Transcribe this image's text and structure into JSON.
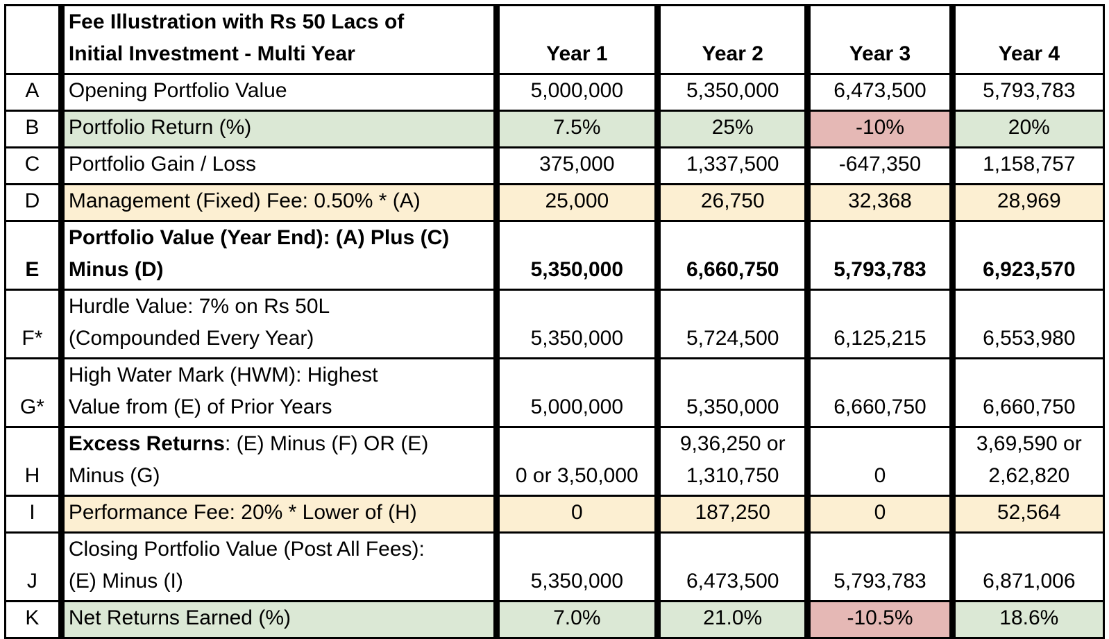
{
  "title_line1": "Fee Illustration with Rs 50 Lacs of",
  "title_line2": "Initial Investment - Multi Year",
  "years": [
    "Year 1",
    "Year 2",
    "Year 3",
    "Year 4"
  ],
  "colors": {
    "green": "#dbe8d5",
    "red": "#e5b8b5",
    "yellow": "#fcefd2"
  },
  "rows": [
    {
      "id": "A",
      "label_lines": [
        "Opening Portfolio Value"
      ],
      "values": [
        [
          "5,000,000"
        ],
        [
          "5,350,000"
        ],
        [
          "6,473,500"
        ],
        [
          "5,793,783"
        ]
      ],
      "bg": [
        "",
        "",
        "",
        "",
        ""
      ]
    },
    {
      "id": "B",
      "label_lines": [
        "Portfolio Return (%)"
      ],
      "values": [
        [
          "7.5%"
        ],
        [
          "25%"
        ],
        [
          "-10%"
        ],
        [
          "20%"
        ]
      ],
      "bg": [
        "green",
        "green",
        "green",
        "red",
        "green"
      ]
    },
    {
      "id": "C",
      "label_lines": [
        "Portfolio Gain / Loss"
      ],
      "values": [
        [
          "375,000"
        ],
        [
          "1,337,500"
        ],
        [
          "-647,350"
        ],
        [
          "1,158,757"
        ]
      ],
      "bg": [
        "",
        "",
        "",
        "",
        ""
      ]
    },
    {
      "id": "D",
      "label_lines": [
        "Management (Fixed) Fee: 0.50% * (A)"
      ],
      "values": [
        [
          "25,000"
        ],
        [
          "26,750"
        ],
        [
          "32,368"
        ],
        [
          "28,969"
        ]
      ],
      "bg": [
        "yellow",
        "yellow",
        "yellow",
        "yellow",
        "yellow"
      ]
    },
    {
      "id": "E",
      "label_lines": [
        "Portfolio Value (Year End): (A) Plus (C)",
        "Minus (D)"
      ],
      "values": [
        [
          "5,350,000"
        ],
        [
          "6,660,750"
        ],
        [
          "5,793,783"
        ],
        [
          "6,923,570"
        ]
      ],
      "bg": [
        "",
        "",
        "",
        "",
        ""
      ],
      "bold": true
    },
    {
      "id": "F*",
      "label_lines": [
        "Hurdle Value: 7% on Rs 50L",
        "(Compounded Every Year)"
      ],
      "values": [
        [
          "5,350,000"
        ],
        [
          "5,724,500"
        ],
        [
          "6,125,215"
        ],
        [
          "6,553,980"
        ]
      ],
      "bg": [
        "",
        "",
        "",
        "",
        ""
      ]
    },
    {
      "id": "G*",
      "label_lines": [
        "High Water Mark (HWM): Highest",
        "Value from (E) of Prior Years"
      ],
      "values": [
        [
          "5,000,000"
        ],
        [
          "5,350,000"
        ],
        [
          "6,660,750"
        ],
        [
          "6,660,750"
        ]
      ],
      "bg": [
        "",
        "",
        "",
        "",
        ""
      ]
    },
    {
      "id": "H",
      "label_bold_prefix": "Excess Returns",
      "label_lines": [
        ": (E) Minus (F)  OR  (E)",
        "Minus (G)"
      ],
      "values": [
        [
          "0 or 3,50,000"
        ],
        [
          "9,36,250 or",
          "1,310,750"
        ],
        [
          "0"
        ],
        [
          "3,69,590 or",
          "2,62,820"
        ]
      ],
      "bg": [
        "",
        "",
        "",
        "",
        ""
      ]
    },
    {
      "id": "I",
      "label_lines": [
        "Performance Fee: 20% * Lower of (H)"
      ],
      "values": [
        [
          "0"
        ],
        [
          "187,250"
        ],
        [
          "0"
        ],
        [
          "52,564"
        ]
      ],
      "bg": [
        "yellow",
        "yellow",
        "yellow",
        "yellow",
        "yellow"
      ]
    },
    {
      "id": "J",
      "label_lines": [
        "Closing Portfolio Value (Post All Fees):",
        "(E) Minus (I)"
      ],
      "values": [
        [
          "5,350,000"
        ],
        [
          "6,473,500"
        ],
        [
          "5,793,783"
        ],
        [
          "6,871,006"
        ]
      ],
      "bg": [
        "",
        "",
        "",
        "",
        ""
      ]
    },
    {
      "id": "K",
      "label_lines": [
        "Net Returns Earned (%)"
      ],
      "values": [
        [
          "7.0%"
        ],
        [
          "21.0%"
        ],
        [
          "-10.5%"
        ],
        [
          "18.6%"
        ]
      ],
      "bg": [
        "green",
        "green",
        "green",
        "red",
        "green"
      ]
    }
  ]
}
